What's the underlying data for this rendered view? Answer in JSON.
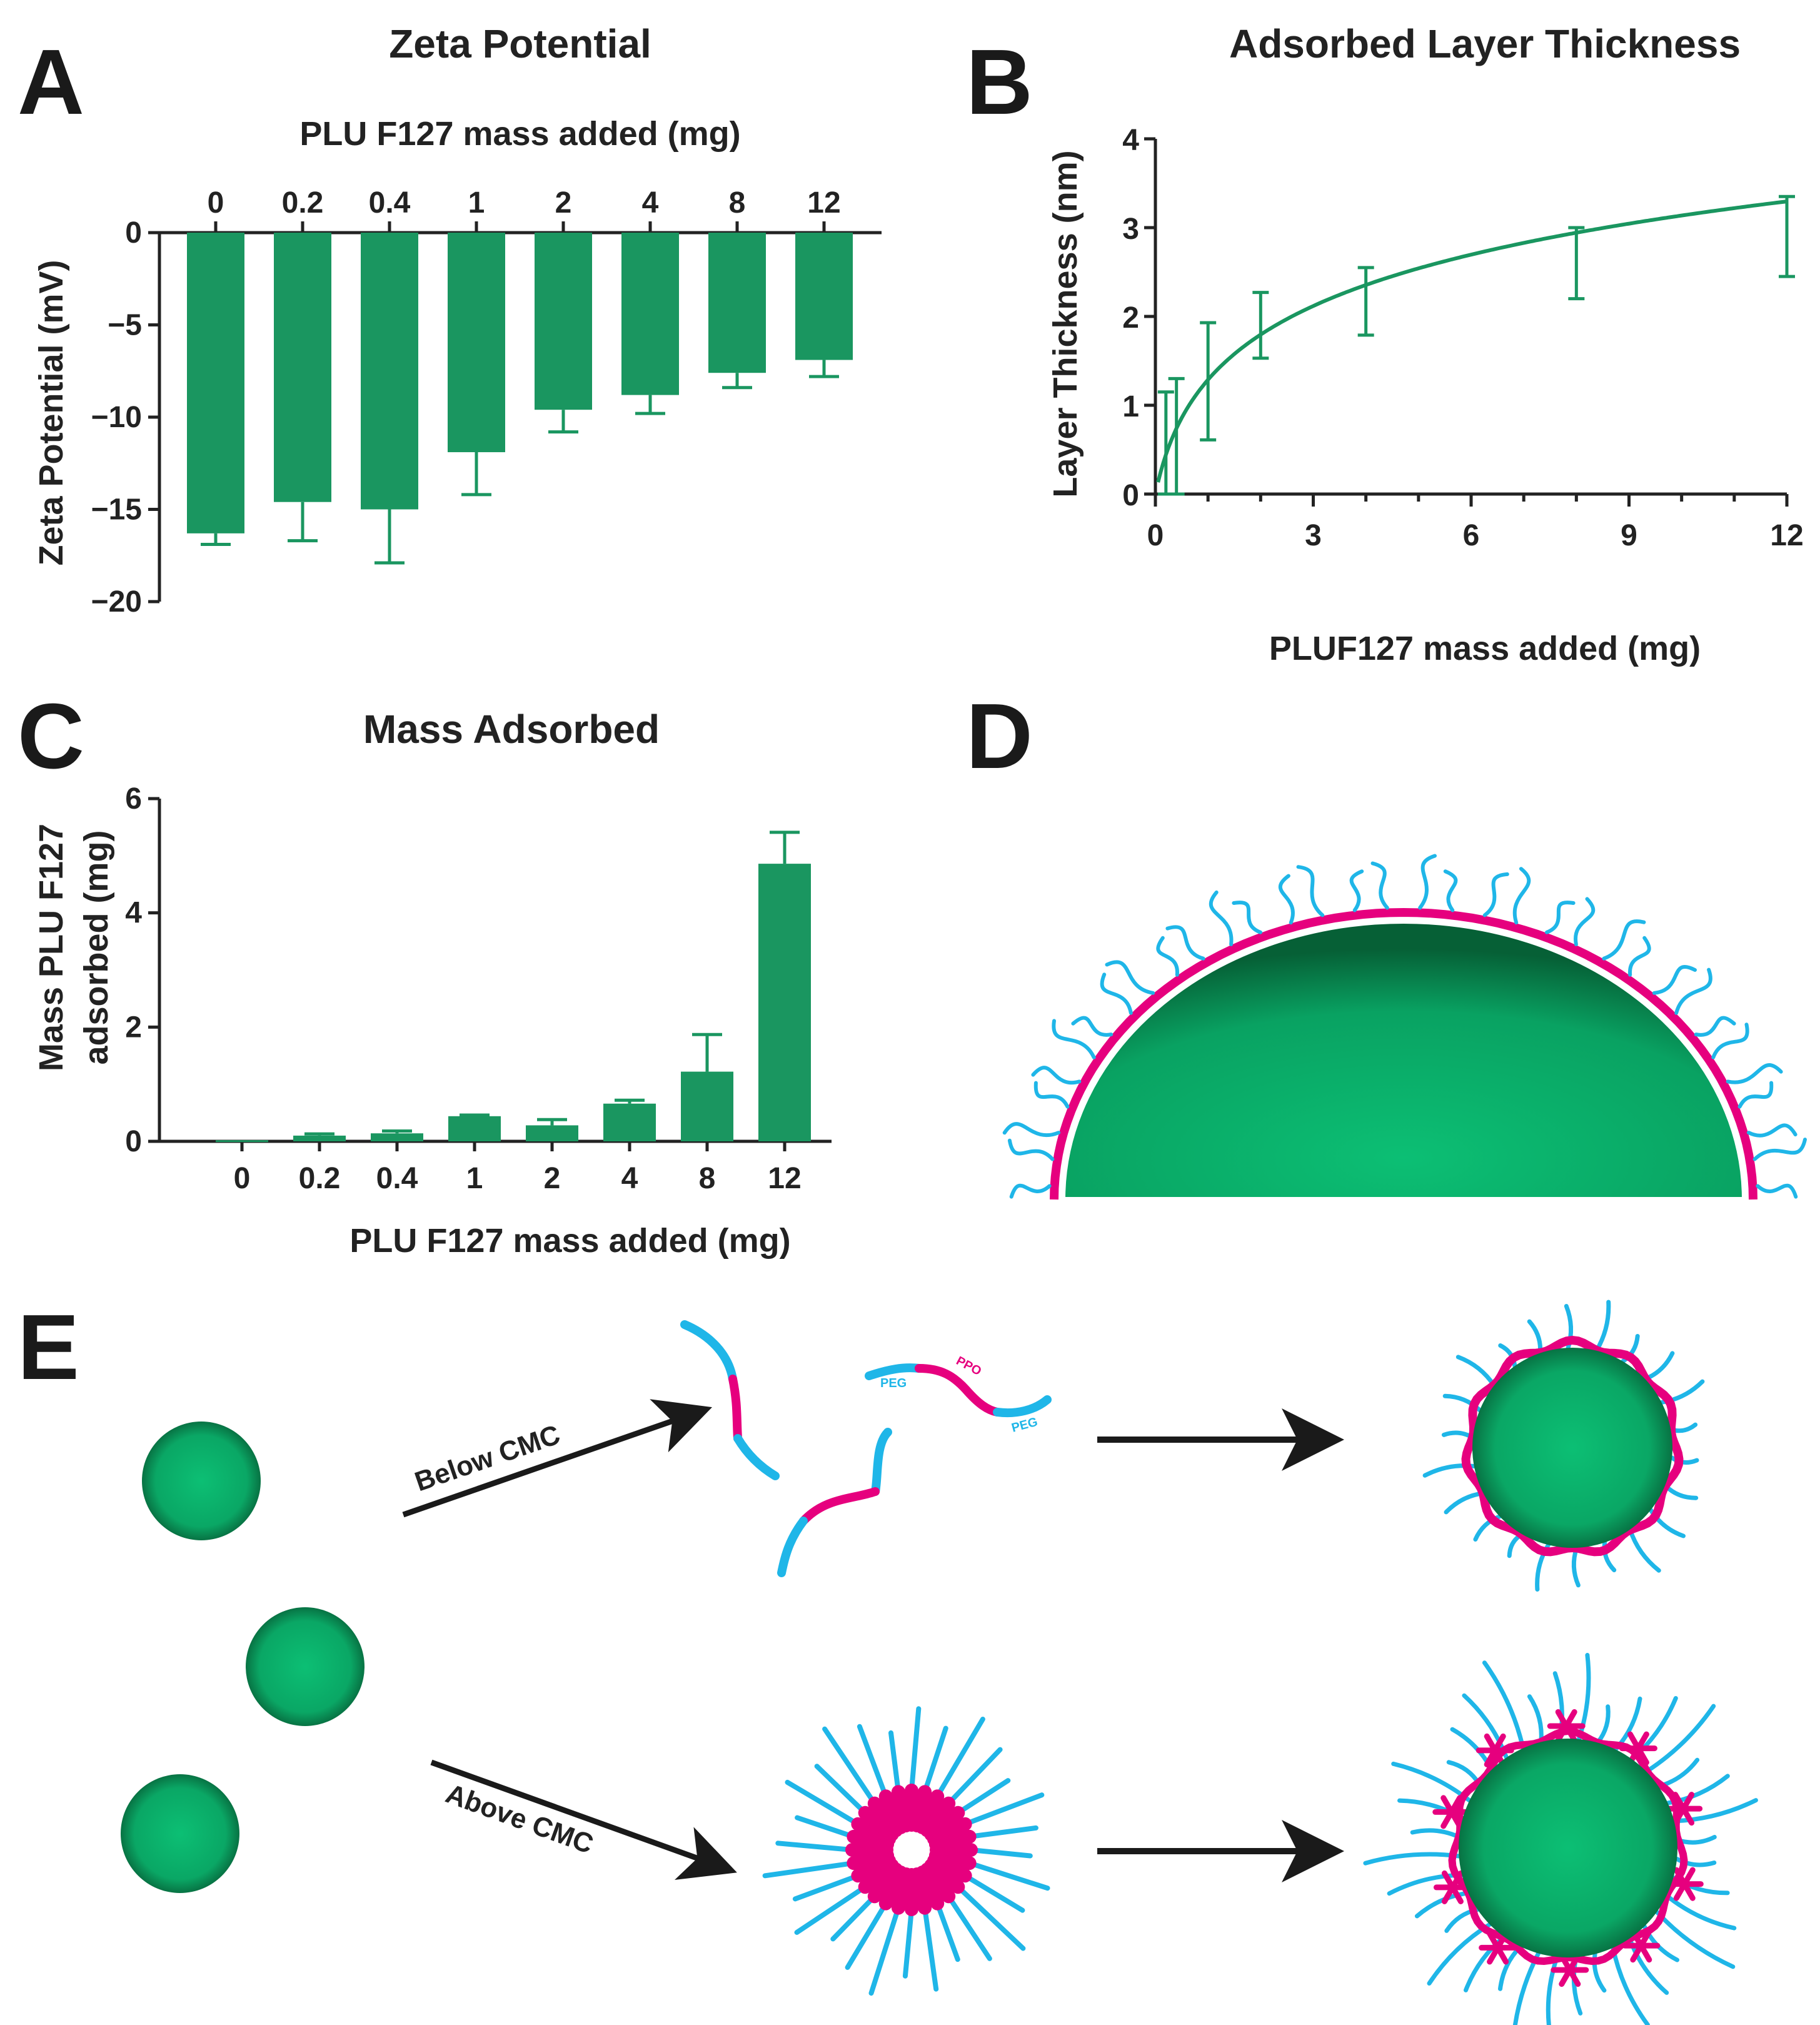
{
  "panel_letters": {
    "a": "A",
    "b": "B",
    "c": "C",
    "d": "D",
    "e": "E"
  },
  "colors": {
    "bar": "#1a9660",
    "particle": "#0bb46e",
    "particle_dark": "#0a6e3f",
    "peg": "#1fb6e8",
    "ppo": "#e6007e",
    "arrow": "#1a1a1a"
  },
  "chart_data": [
    {
      "id": "A",
      "type": "bar",
      "title": "Zeta Potential",
      "xlabel": "PLU F127 mass added (mg)",
      "ylabel": "Zeta Potential (mV)",
      "categories": [
        "0",
        "0.2",
        "0.4",
        "1",
        "2",
        "4",
        "8",
        "12"
      ],
      "values": [
        -16.3,
        -14.6,
        -15.0,
        -11.9,
        -9.6,
        -8.8,
        -7.6,
        -6.9
      ],
      "errors": [
        0.6,
        2.1,
        2.9,
        2.3,
        1.2,
        1.0,
        0.8,
        0.9
      ],
      "ylim": [
        -20,
        0
      ],
      "yticks": [
        0,
        -5,
        -10,
        -15,
        -20
      ],
      "ytick_labels": [
        "0",
        "−5",
        "−10",
        "−15",
        "−20"
      ],
      "xaxis_position": "top"
    },
    {
      "id": "B",
      "type": "line",
      "title": "Adsorbed Layer Thickness",
      "xlabel": "PLUF127 mass added (mg)",
      "ylabel": "Layer Thickness (nm)",
      "x": [
        0.2,
        0.4,
        1,
        2,
        4,
        8,
        12
      ],
      "y": [
        0.3,
        0.65,
        1.27,
        1.9,
        2.17,
        2.6,
        2.9
      ],
      "errors": [
        0.85,
        0.65,
        0.66,
        0.37,
        0.38,
        0.4,
        0.45
      ],
      "fit_curve": true,
      "xlim": [
        0,
        12
      ],
      "ylim": [
        0,
        4
      ],
      "xticks": [
        0,
        3,
        6,
        9,
        12
      ],
      "yticks": [
        0,
        1,
        2,
        3,
        4
      ]
    },
    {
      "id": "C",
      "type": "bar",
      "title": "Mass Adsorbed",
      "xlabel": "PLU F127 mass added (mg)",
      "ylabel": [
        "Mass PLU F127",
        "adsorbed (mg)"
      ],
      "categories": [
        "0",
        "0.2",
        "0.4",
        "1",
        "2",
        "4",
        "8",
        "12"
      ],
      "values": [
        0.02,
        0.1,
        0.14,
        0.44,
        0.28,
        0.66,
        1.22,
        4.86
      ],
      "errors": [
        0.0,
        0.03,
        0.04,
        0.02,
        0.1,
        0.06,
        0.65,
        0.55
      ],
      "ylim": [
        0,
        6
      ],
      "yticks": [
        0,
        2,
        4,
        6
      ]
    }
  ],
  "schematic_e": {
    "below_label": "Below CMC",
    "above_label": "Above CMC",
    "peg_label": "PEG",
    "ppo_label": "PPO"
  }
}
